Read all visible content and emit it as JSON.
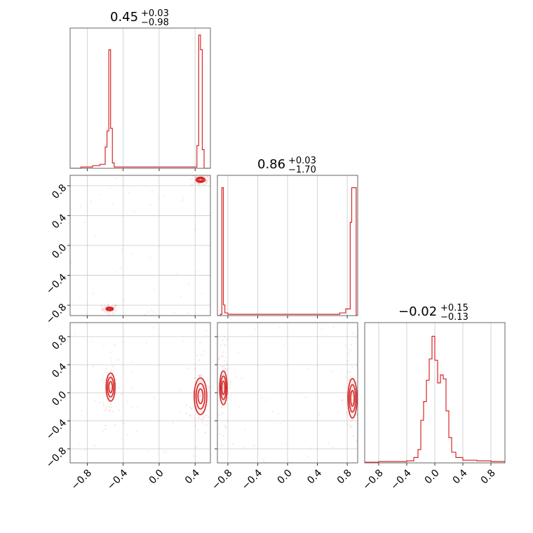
{
  "chart_data": {
    "type": "corner",
    "color": "#d62728",
    "grid": true,
    "axis_ticks": [
      "−0.8",
      "−0.4",
      "0.0",
      "0.4",
      "0.8"
    ],
    "axis_tick_values": [
      -0.8,
      -0.4,
      0.0,
      0.4,
      0.8
    ],
    "titles": [
      {
        "value": "0.45",
        "upper": "+0.03",
        "lower": "−0.98"
      },
      {
        "value": "0.86",
        "upper": "+0.03",
        "lower": "−1.70"
      },
      {
        "value": "−0.02",
        "upper": "+0.15",
        "lower": "−0.13"
      }
    ],
    "ranges": [
      [
        -0.99,
        0.57
      ],
      [
        -0.94,
        0.94
      ],
      [
        -1.0,
        1.0
      ]
    ],
    "hist1": [
      [
        -0.99,
        0
      ],
      [
        -0.87,
        0.01
      ],
      [
        -0.8,
        0.01
      ],
      [
        -0.74,
        0.02
      ],
      [
        -0.66,
        0.03
      ],
      [
        -0.6,
        0.16
      ],
      [
        -0.58,
        0.28
      ],
      [
        -0.56,
        0.89
      ],
      [
        -0.54,
        0.3
      ],
      [
        -0.52,
        0.04
      ],
      [
        -0.5,
        0.01
      ],
      [
        -0.3,
        0.01
      ],
      [
        0.1,
        0.01
      ],
      [
        0.4,
        0.01
      ],
      [
        0.42,
        0.17
      ],
      [
        0.44,
        1.0
      ],
      [
        0.46,
        0.89
      ],
      [
        0.48,
        0.14
      ],
      [
        0.5,
        0.0
      ],
      [
        0.57,
        0
      ]
    ],
    "hist2": [
      [
        -0.94,
        0
      ],
      [
        -0.9,
        0.01
      ],
      [
        -0.88,
        0.96
      ],
      [
        -0.86,
        0.08
      ],
      [
        -0.84,
        0.02
      ],
      [
        -0.8,
        0.01
      ],
      [
        -0.6,
        0.01
      ],
      [
        -0.2,
        0.01
      ],
      [
        0.2,
        0.01
      ],
      [
        0.7,
        0.02
      ],
      [
        0.78,
        0.05
      ],
      [
        0.84,
        0.7
      ],
      [
        0.86,
        0.96
      ],
      [
        0.88,
        0.96
      ],
      [
        0.9,
        0.96
      ],
      [
        0.92,
        0.0
      ],
      [
        0.94,
        0
      ]
    ],
    "hist3": [
      [
        -1.0,
        0.005
      ],
      [
        -0.8,
        0.01
      ],
      [
        -0.6,
        0.01
      ],
      [
        -0.4,
        0.015
      ],
      [
        -0.3,
        0.04
      ],
      [
        -0.24,
        0.1
      ],
      [
        -0.2,
        0.32
      ],
      [
        -0.16,
        0.46
      ],
      [
        -0.12,
        0.62
      ],
      [
        -0.08,
        0.78
      ],
      [
        -0.04,
        0.95
      ],
      [
        0.0,
        0.77
      ],
      [
        0.04,
        0.6
      ],
      [
        0.08,
        0.66
      ],
      [
        0.12,
        0.63
      ],
      [
        0.16,
        0.39
      ],
      [
        0.2,
        0.19
      ],
      [
        0.24,
        0.08
      ],
      [
        0.3,
        0.04
      ],
      [
        0.4,
        0.02
      ],
      [
        0.6,
        0.015
      ],
      [
        0.8,
        0.01
      ],
      [
        1.0,
        0
      ]
    ],
    "modes_21": [
      {
        "x": -0.55,
        "y": -0.85,
        "sx": 0.02,
        "sy": 0.012
      },
      {
        "x": 0.46,
        "y": 0.88,
        "sx": 0.025,
        "sy": 0.018
      }
    ],
    "modes_31": [
      {
        "x": -0.54,
        "y": 0.08,
        "sx": 0.025,
        "sy": 0.1
      },
      {
        "x": 0.46,
        "y": -0.05,
        "sx": 0.035,
        "sy": 0.13
      }
    ],
    "modes_32": [
      {
        "x": -0.86,
        "y": 0.07,
        "sx": 0.025,
        "sy": 0.12
      },
      {
        "x": 0.87,
        "y": -0.08,
        "sx": 0.03,
        "sy": 0.14
      }
    ]
  }
}
